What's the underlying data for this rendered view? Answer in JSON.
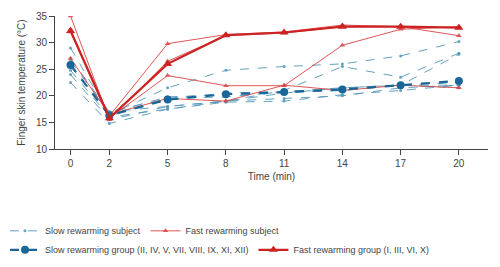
{
  "chart_data": {
    "type": "line",
    "xlabel": "Time (min)",
    "ylabel": "Finger skin temperature (°C)",
    "x": [
      0,
      2,
      5,
      8,
      11,
      14,
      17,
      20
    ],
    "xlim": [
      -0.8,
      21.5
    ],
    "xticks": [
      0,
      2,
      5,
      8,
      11,
      14,
      17,
      20
    ],
    "ylim": [
      10,
      35
    ],
    "yticks": [
      10,
      15,
      20,
      25,
      30,
      35
    ],
    "grid": false,
    "legend": "bottom",
    "series": [
      {
        "name": "Slow rewarming subject",
        "color": "#5599bb",
        "marker": "point",
        "line_style": "dashed",
        "values": [
          29.0,
          16.5,
          21.5,
          24.8,
          25.5,
          26.0,
          27.5,
          30.2
        ]
      },
      {
        "name": "Slow rewarming subject",
        "color": "#5599bb",
        "marker": "point",
        "line_style": "dashed",
        "values": [
          27.0,
          17.0,
          19.5,
          20.5,
          20.8,
          21.5,
          22.0,
          22.5
        ]
      },
      {
        "name": "Slow rewarming subject",
        "color": "#5599bb",
        "marker": "point",
        "line_style": "dashed",
        "values": [
          26.5,
          16.8,
          19.8,
          20.2,
          20.5,
          21.0,
          22.0,
          22.0
        ]
      },
      {
        "name": "Slow rewarming subject",
        "color": "#5599bb",
        "marker": "point",
        "line_style": "dashed",
        "values": [
          26.0,
          16.2,
          19.5,
          19.8,
          20.7,
          21.0,
          22.0,
          21.5
        ]
      },
      {
        "name": "Slow rewarming subject",
        "color": "#5599bb",
        "marker": "point",
        "line_style": "dashed",
        "values": [
          25.5,
          17.0,
          18.0,
          19.0,
          19.5,
          20.0,
          21.5,
          22.0
        ]
      },
      {
        "name": "Slow rewarming subject",
        "color": "#5599bb",
        "marker": "point",
        "line_style": "dashed",
        "values": [
          24.8,
          16.0,
          17.5,
          18.8,
          19.0,
          20.2,
          21.0,
          22.0
        ]
      },
      {
        "name": "Slow rewarming subject",
        "color": "#5599bb",
        "marker": "point",
        "line_style": "dashed",
        "values": [
          24.0,
          15.5,
          18.0,
          19.0,
          21.0,
          25.5,
          23.5,
          28.0
        ]
      },
      {
        "name": "Slow rewarming subject",
        "color": "#5599bb",
        "marker": "point",
        "line_style": "dashed",
        "values": [
          22.5,
          14.8,
          17.5,
          19.0,
          20.5,
          21.5,
          22.0,
          27.8
        ]
      },
      {
        "name": "Fast rewarming subject",
        "color": "#dd4444",
        "marker": "triangle",
        "line_style": "solid",
        "values": [
          35.0,
          15.5,
          26.5,
          31.3,
          31.8,
          33.0,
          33.0,
          31.3
        ]
      },
      {
        "name": "Fast rewarming subject",
        "color": "#dd4444",
        "marker": "triangle",
        "line_style": "solid",
        "values": [
          32.5,
          16.2,
          29.8,
          31.5,
          32.0,
          33.3,
          33.0,
          32.8
        ]
      },
      {
        "name": "Fast rewarming subject",
        "color": "#dd4444",
        "marker": "triangle",
        "line_style": "solid",
        "values": [
          32.0,
          15.8,
          23.8,
          21.9,
          21.9,
          29.5,
          32.5,
          33.0
        ]
      },
      {
        "name": "Fast rewarming subject",
        "color": "#dd4444",
        "marker": "triangle",
        "line_style": "solid",
        "values": [
          27.0,
          16.5,
          19.5,
          19.0,
          22.0,
          21.0,
          22.0,
          21.5
        ]
      },
      {
        "name": "Slow rewarming group (II, IV, V, VII, VIII, IX, XI, XII)",
        "color": "#1a6699",
        "marker": "circle",
        "line_style": "dashed",
        "values": [
          25.8,
          16.3,
          19.3,
          20.3,
          20.7,
          21.2,
          22.0,
          22.8
        ]
      },
      {
        "name": "Fast rewarming group (I, III, VI, X)",
        "color": "#cc2222",
        "marker": "triangle",
        "line_style": "solid",
        "values": [
          32.2,
          15.8,
          26.0,
          31.4,
          31.9,
          33.0,
          33.0,
          32.8
        ]
      }
    ]
  }
}
